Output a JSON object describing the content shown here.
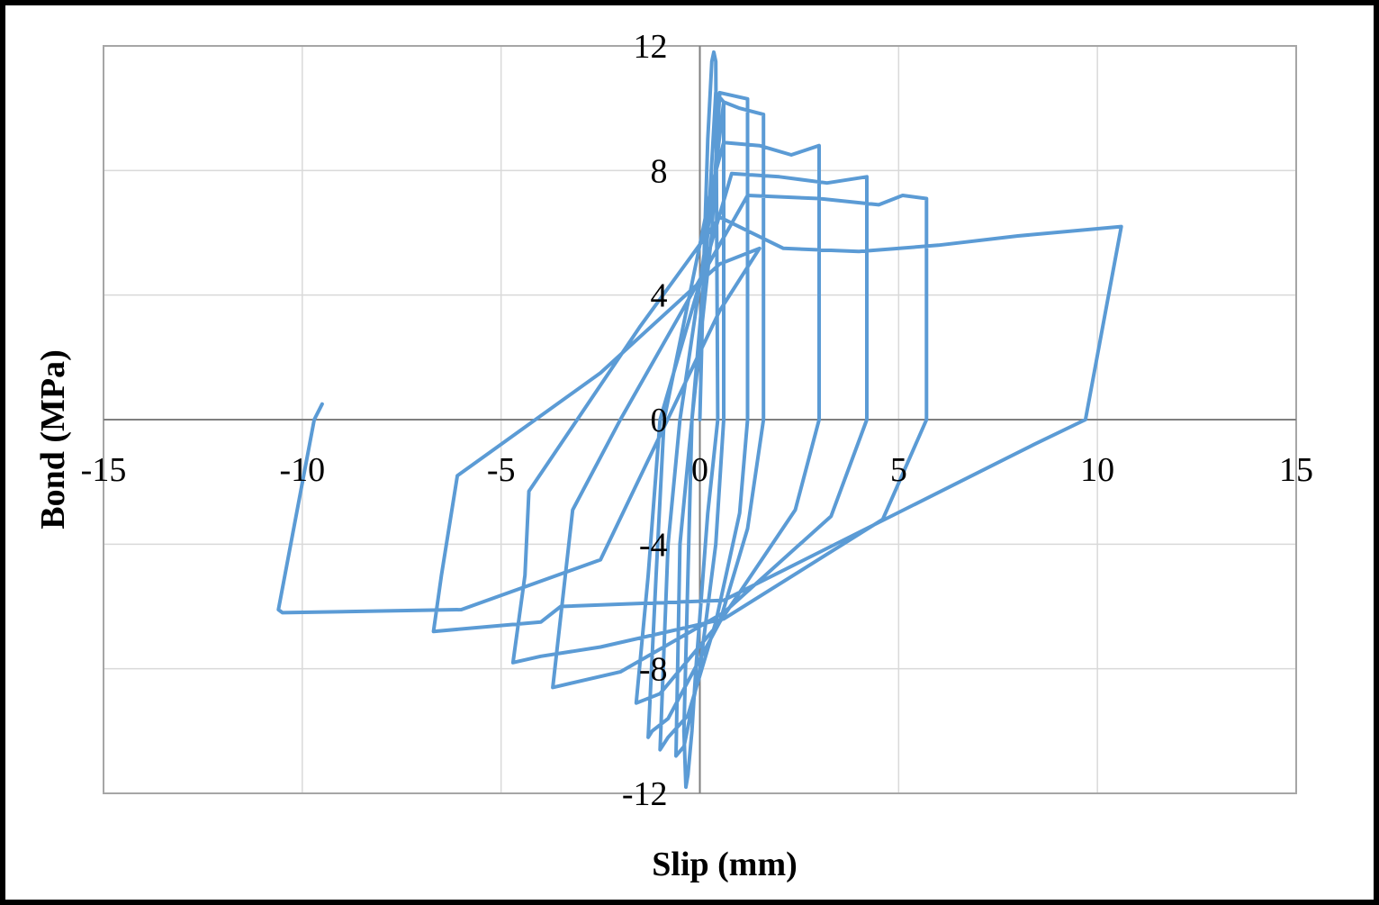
{
  "chart_data": {
    "type": "line",
    "xlabel": "Slip (mm)",
    "ylabel": "Bond (MPa)",
    "xlim": [
      -15,
      15
    ],
    "ylim": [
      -12,
      12
    ],
    "xticks": [
      "-15",
      "-10",
      "-5",
      "0",
      "5",
      "10",
      "15"
    ],
    "yticks": [
      "-12",
      "-8",
      "-4",
      "0",
      "4",
      "8",
      "12"
    ],
    "grid": true,
    "legend": "none",
    "line_color": "#5b9bd5",
    "series": [
      {
        "values_xy": [
          [
            0,
            0
          ],
          [
            0.1,
            5
          ],
          [
            0.2,
            9
          ],
          [
            0.3,
            11.5
          ],
          [
            0.35,
            11.8
          ],
          [
            0.4,
            11.5
          ],
          [
            0.45,
            0
          ],
          [
            0.2,
            -3
          ],
          [
            -0.1,
            -8
          ],
          [
            -0.2,
            -10
          ],
          [
            -0.3,
            -11.4
          ],
          [
            -0.35,
            -11.8
          ],
          [
            -0.4,
            -10
          ],
          [
            -0.2,
            0
          ],
          [
            0.2,
            6
          ],
          [
            0.4,
            10.5
          ],
          [
            0.6,
            10.2
          ],
          [
            0.6,
            0
          ],
          [
            0.4,
            -4
          ],
          [
            0,
            -8
          ],
          [
            -0.4,
            -10.5
          ],
          [
            -0.6,
            -10.8
          ],
          [
            -0.5,
            -4
          ],
          [
            -0.2,
            0
          ],
          [
            0.3,
            6
          ],
          [
            0.5,
            10.5
          ],
          [
            1.2,
            10.3
          ],
          [
            1.2,
            0
          ],
          [
            1.0,
            -3
          ],
          [
            0.4,
            -6.5
          ],
          [
            -0.3,
            -9.5
          ],
          [
            -0.8,
            -10.2
          ],
          [
            -1.0,
            -10.6
          ],
          [
            -0.8,
            -4
          ],
          [
            -0.5,
            0
          ],
          [
            0.3,
            7
          ],
          [
            0.6,
            10.2
          ],
          [
            1.0,
            10
          ],
          [
            1.6,
            9.8
          ],
          [
            1.6,
            0
          ],
          [
            1.2,
            -3.5
          ],
          [
            0.5,
            -6.5
          ],
          [
            -0.8,
            -9.6
          ],
          [
            -1.2,
            -10.0
          ],
          [
            -1.3,
            -10.2
          ],
          [
            -1.1,
            -5
          ],
          [
            -0.9,
            0
          ],
          [
            0.3,
            7.5
          ],
          [
            0.6,
            8.9
          ],
          [
            1.5,
            8.8
          ],
          [
            2.3,
            8.5
          ],
          [
            3.0,
            8.8
          ],
          [
            3.0,
            0
          ],
          [
            2.4,
            -2.9
          ],
          [
            0.5,
            -6.5
          ],
          [
            -1.0,
            -8.8
          ],
          [
            -1.4,
            -9.0
          ],
          [
            -1.6,
            -9.1
          ],
          [
            -1.3,
            -5
          ],
          [
            -1.0,
            0
          ],
          [
            0.8,
            7.9
          ],
          [
            2.0,
            7.8
          ],
          [
            3.2,
            7.6
          ],
          [
            4.2,
            7.8
          ],
          [
            4.2,
            0
          ],
          [
            3.3,
            -3.1
          ],
          [
            0.6,
            -6.2
          ],
          [
            -2.0,
            -8.1
          ],
          [
            -3.7,
            -8.6
          ],
          [
            -3.2,
            -2.9
          ],
          [
            -2.0,
            0
          ],
          [
            1.2,
            7.2
          ],
          [
            3.0,
            7.1
          ],
          [
            4.5,
            6.9
          ],
          [
            5.1,
            7.2
          ],
          [
            5.7,
            7.1
          ],
          [
            5.7,
            0
          ],
          [
            4.6,
            -3.2
          ],
          [
            0.6,
            -6.4
          ],
          [
            -2.5,
            -7.3
          ],
          [
            -4.0,
            -7.6
          ],
          [
            -4.7,
            -7.8
          ],
          [
            -4.4,
            -5
          ],
          [
            -4.3,
            -2.3
          ],
          [
            -1.5,
            3.0
          ],
          [
            0.5,
            6.5
          ],
          [
            2.1,
            5.5
          ],
          [
            4.0,
            5.4
          ],
          [
            6.0,
            5.6
          ],
          [
            8.0,
            5.9
          ],
          [
            10.6,
            6.2
          ],
          [
            9.7,
            0
          ],
          [
            8.4,
            -0.8
          ],
          [
            0.6,
            -5.8
          ],
          [
            -3.5,
            -6.0
          ],
          [
            -4.0,
            -6.5
          ],
          [
            -6.7,
            -6.8
          ],
          [
            -6.5,
            -5
          ],
          [
            -6.1,
            -1.8
          ],
          [
            -2.5,
            1.5
          ],
          [
            0.5,
            5.0
          ],
          [
            1.5,
            5.5
          ],
          [
            0.5,
            3.5
          ],
          [
            -2.5,
            -4.5
          ],
          [
            -6.0,
            -6.1
          ],
          [
            -10.5,
            -6.2
          ],
          [
            -10.6,
            -6.1
          ],
          [
            -9.7,
            0
          ],
          [
            -9.5,
            0.5
          ]
        ]
      }
    ]
  }
}
